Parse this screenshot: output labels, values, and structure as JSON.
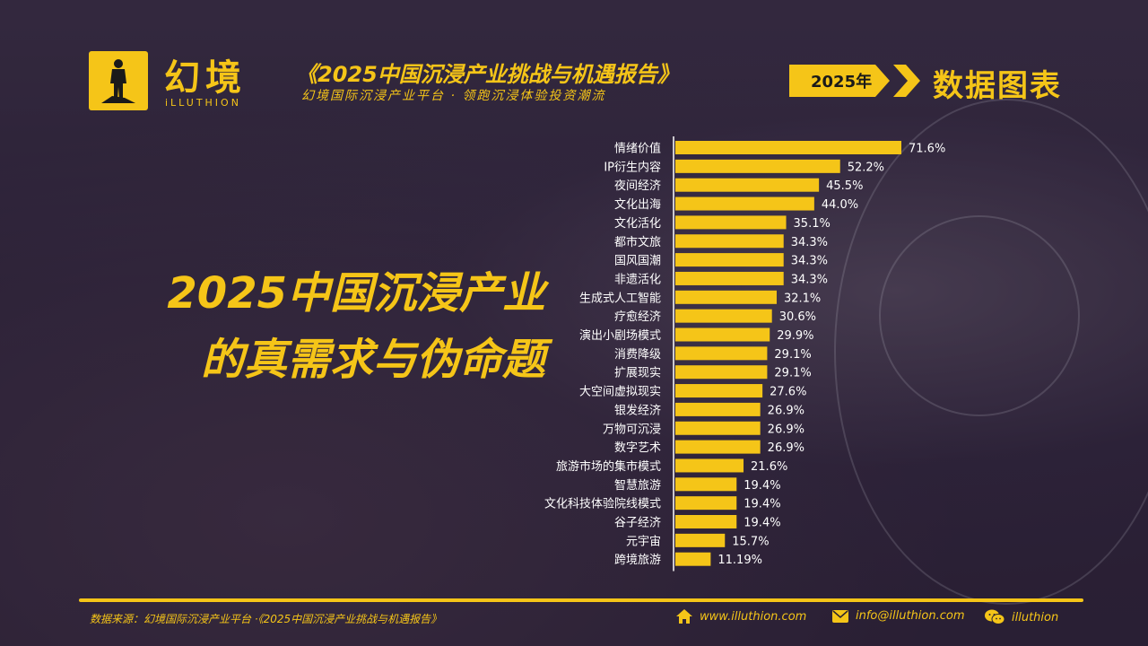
{
  "brand": {
    "name_cn": "幻境",
    "name_en": "iLLUTHION"
  },
  "header": {
    "title": "《2025中国沉浸产业挑战与机遇报告》",
    "subtitle": "幻境国际沉浸产业平台 · 领跑沉浸体验投资潮流",
    "year_badge": "2025年",
    "section": "数据图表"
  },
  "main_title": {
    "line1": "2025中国沉浸产业",
    "line2": "的真需求与伪命题"
  },
  "colors": {
    "accent": "#f5c518",
    "bar": "#f5c518",
    "text_light": "#ffffff"
  },
  "chart_data": {
    "type": "bar",
    "orientation": "horizontal",
    "categories": [
      "情绪价值",
      "IP衍生内容",
      "夜间经济",
      "文化出海",
      "文化活化",
      "都市文旅",
      "国风国潮",
      "非遗活化",
      "生成式人工智能",
      "疗愈经济",
      "演出小剧场模式",
      "消费降级",
      "扩展现实",
      "大空间虚拟现实",
      "银发经济",
      "万物可沉浸",
      "数字艺术",
      "旅游市场的集市模式",
      "智慧旅游",
      "文化科技体验院线模式",
      "谷子经济",
      "元宇宙",
      "跨境旅游"
    ],
    "values": [
      71.6,
      52.2,
      45.5,
      44.0,
      35.1,
      34.3,
      34.3,
      34.3,
      32.1,
      30.6,
      29.9,
      29.1,
      29.1,
      27.6,
      26.9,
      26.9,
      26.9,
      21.6,
      19.4,
      19.4,
      19.4,
      15.7,
      11.19
    ],
    "value_labels": [
      "71.6%",
      "52.2%",
      "45.5%",
      "44.0%",
      "35.1%",
      "34.3%",
      "34.3%",
      "34.3%",
      "32.1%",
      "30.6%",
      "29.9%",
      "29.1%",
      "29.1%",
      "27.6%",
      "26.9%",
      "26.9%",
      "26.9%",
      "21.6%",
      "19.4%",
      "19.4%",
      "19.4%",
      "15.7%",
      "11.19%"
    ],
    "xlim": [
      0,
      71.6
    ],
    "grid": false,
    "legend": "none"
  },
  "footer": {
    "source": "数据来源：幻境国际沉浸产业平台 ·《2025中国沉浸产业挑战与机遇报告》",
    "website": "www.illuthion.com",
    "email": "info@illuthion.com",
    "wechat": "illuthion"
  }
}
